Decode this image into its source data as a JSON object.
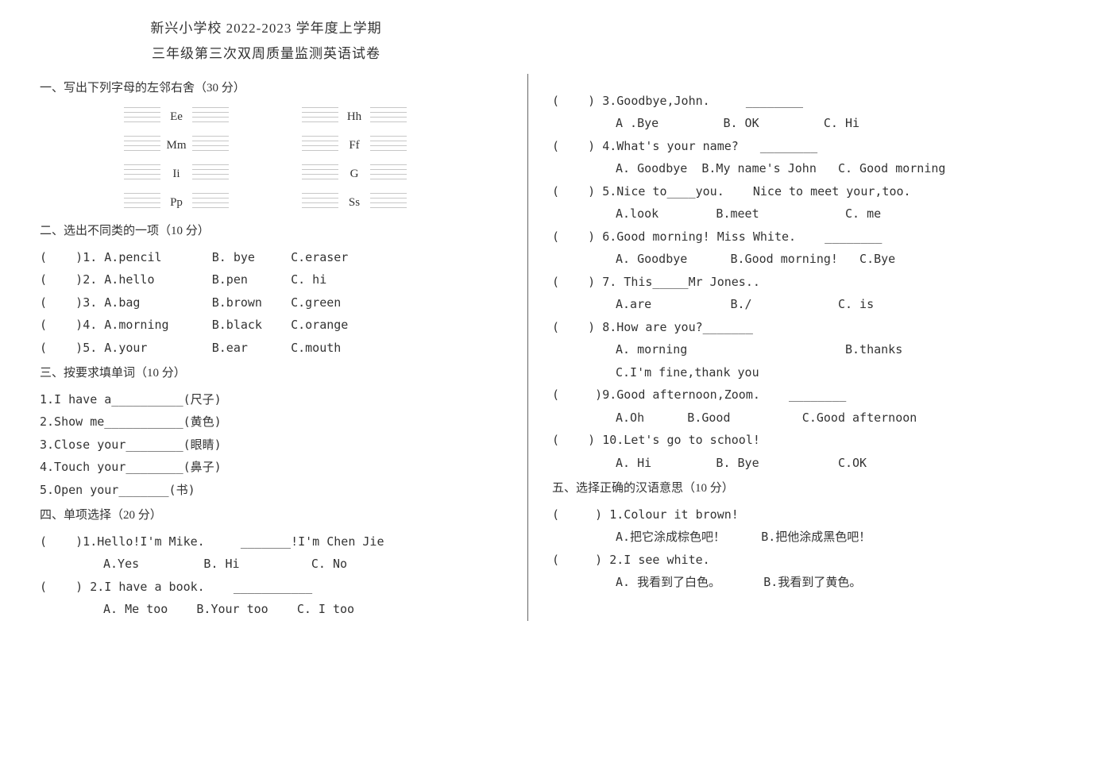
{
  "header": {
    "line1": "新兴小学校 2022-2023 学年度上学期",
    "line2": "三年级第三次双周质量监测英语试卷"
  },
  "section1": {
    "title": "一、写出下列字母的左邻右舍（30 分）",
    "rows": [
      {
        "left": "Ee",
        "right": "Hh"
      },
      {
        "left": "Mm",
        "right": "Ff"
      },
      {
        "left": "Ii",
        "right": "G"
      },
      {
        "left": "Pp",
        "right": "Ss"
      }
    ]
  },
  "section2": {
    "title": "二、选出不同类的一项（10 分）",
    "items": [
      {
        "n": "1",
        "a": "A.pencil",
        "b": "B. bye",
        "c": "C.eraser"
      },
      {
        "n": "2",
        "a": "A.hello",
        "b": "B.pen",
        "c": "C. hi"
      },
      {
        "n": "3",
        "a": "A.bag",
        "b": "B.brown",
        "c": "C.green"
      },
      {
        "n": "4",
        "a": "A.morning",
        "b": "B.black",
        "c": "C.orange"
      },
      {
        "n": "5",
        "a": "A.your",
        "b": "B.ear",
        "c": "C.mouth"
      }
    ]
  },
  "section3": {
    "title": "三、按要求填单词（10 分）",
    "items": [
      "1.I have a__________(尺子)",
      "2.Show me___________(黄色)",
      "3.Close your________(眼睛)",
      "4.Touch your________(鼻子)",
      "5.Open your_______(书)"
    ]
  },
  "section4": {
    "title": "四、单项选择（20 分）",
    "q1": "(    )1.Hello!I'm Mike.     _______!I'm Chen Jie",
    "q1opts": "A.Yes         B. Hi          C. No",
    "q2": "(    ) 2.I have a book.    ___________",
    "q2opts": "A. Me too    B.Your too    C. I too",
    "q3": "(    ) 3.Goodbye,John.     ________",
    "q3opts": "A .Bye         B. OK         C. Hi",
    "q4": "(    ) 4.What's your name?   ________",
    "q4opts": "A. Goodbye  B.My name's John   C. Good morning",
    "q5": "(    ) 5.Nice to____you.    Nice to meet your,too.",
    "q5opts": "A.look        B.meet            C. me",
    "q6": "(    ) 6.Good morning! Miss White.    ________",
    "q6opts": "A. Goodbye      B.Good morning!   C.Bye",
    "q7": "(    ) 7. This_____Mr Jones..",
    "q7opts": "A.are           B./            C. is",
    "q8": "(    ) 8.How are you?_______",
    "q8optsA": "A. morning                      B.thanks",
    "q8optsC": "C.I'm fine,thank you",
    "q9": "(     )9.Good afternoon,Zoom.    ________",
    "q9opts": "A.Oh      B.Good          C.Good afternoon",
    "q10": "(    ) 10.Let's go to school!",
    "q10opts": "A. Hi         B. Bye           C.OK"
  },
  "section5": {
    "title": "五、选择正确的汉语意思（10 分）",
    "q1": "(     ) 1.Colour it brown!",
    "q1opts": "A.把它涂成棕色吧！     B.把他涂成黑色吧！",
    "q2": "(     ) 2.I see white.",
    "q2opts": "A. 我看到了白色。      B.我看到了黄色。"
  }
}
